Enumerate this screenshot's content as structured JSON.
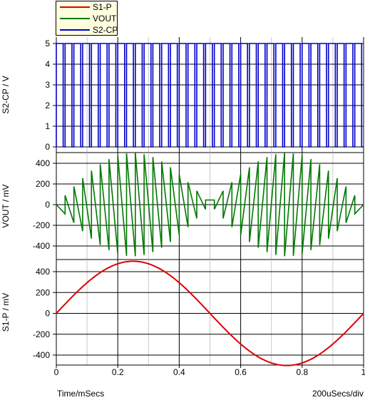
{
  "chart_data": [
    {
      "type": "line",
      "panel": "top",
      "series": [
        {
          "name": "S2-CP",
          "color": "#0000c8",
          "kind": "clock",
          "low": 0,
          "high": 5,
          "cycles": 35
        }
      ],
      "ylabel": "S2-CP / V",
      "ylim": [
        0,
        5
      ],
      "yticks": [
        0,
        1,
        2,
        3,
        4,
        5
      ],
      "ytick_labels": [
        "0",
        "1",
        "2",
        "3",
        "4",
        "5"
      ]
    },
    {
      "type": "line",
      "panel": "middle",
      "series": [
        {
          "name": "VOUT",
          "color": "#007800",
          "kind": "sampled-sine",
          "amplitude": 500,
          "frequency_per_ms": 1,
          "samples": 35
        }
      ],
      "ylabel": "VOUT / mV",
      "ylim": [
        -500,
        500
      ],
      "yticks": [
        -400,
        -200,
        0,
        200,
        400
      ],
      "ytick_labels": [
        "-400",
        "-200",
        "0",
        "200",
        "400"
      ]
    },
    {
      "type": "line",
      "panel": "bottom",
      "series": [
        {
          "name": "S1-P",
          "color": "#dc0000",
          "kind": "sine",
          "amplitude": 500,
          "frequency_per_ms": 1
        }
      ],
      "ylabel": "S1-P / mV",
      "ylim": [
        -500,
        500
      ],
      "yticks": [
        -400,
        -200,
        0,
        200,
        400
      ],
      "ytick_labels": [
        "-400",
        "-200",
        "0",
        "200",
        "400"
      ]
    }
  ],
  "xaxis": {
    "xlim": [
      0,
      1
    ],
    "xticks": [
      0,
      0.2,
      0.4,
      0.6,
      0.8,
      1
    ],
    "xtick_labels": [
      "0",
      "0.2",
      "0.4",
      "0.6",
      "0.8",
      "1"
    ],
    "minor_ticks": [
      0.1,
      0.3,
      0.5,
      0.7,
      0.9
    ],
    "xlabel": "Time/mSecs",
    "scale_label": "200uSecs/div"
  },
  "legend": {
    "placement": "top-left",
    "entries": [
      {
        "label": "S1-P",
        "color": "#dc0000"
      },
      {
        "label": "VOUT",
        "color": "#007800"
      },
      {
        "label": "S2-CP",
        "color": "#0000c8"
      }
    ]
  },
  "grid": true
}
